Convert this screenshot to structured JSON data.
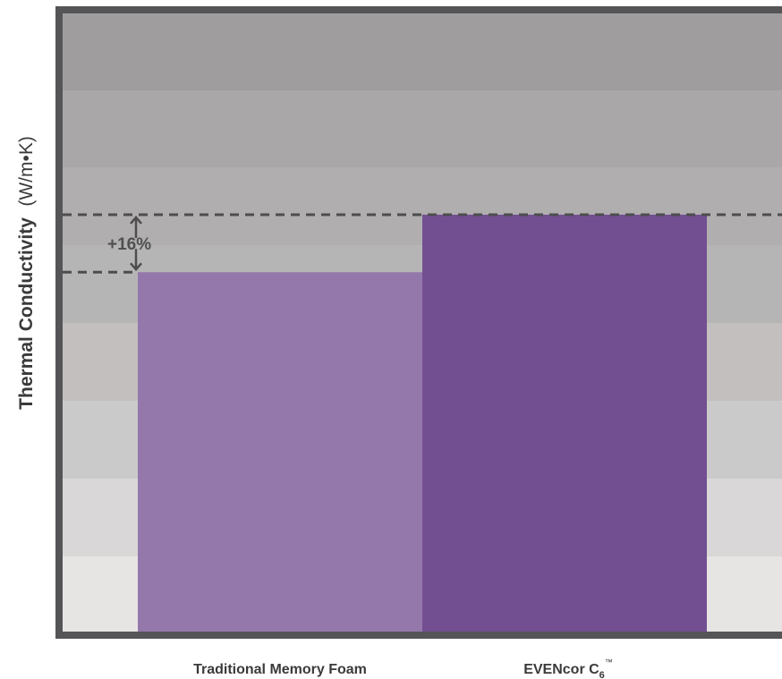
{
  "chart_data": {
    "type": "bar",
    "ylabel": "Thermal Conductivity",
    "yunit": "(W/m•K)",
    "categories": [
      {
        "name": "Traditional Memory Foam",
        "suffix": "",
        "sup": ""
      },
      {
        "name": "EVENcor C",
        "suffix": "6",
        "sup": "™"
      }
    ],
    "values": [
      1.0,
      1.16
    ],
    "annotation": "+16%",
    "ylim": [
      0,
      1.72
    ],
    "colors": [
      "#9478ab",
      "#724f91"
    ],
    "grid": false,
    "background": "horizontal gray gradient bands"
  }
}
